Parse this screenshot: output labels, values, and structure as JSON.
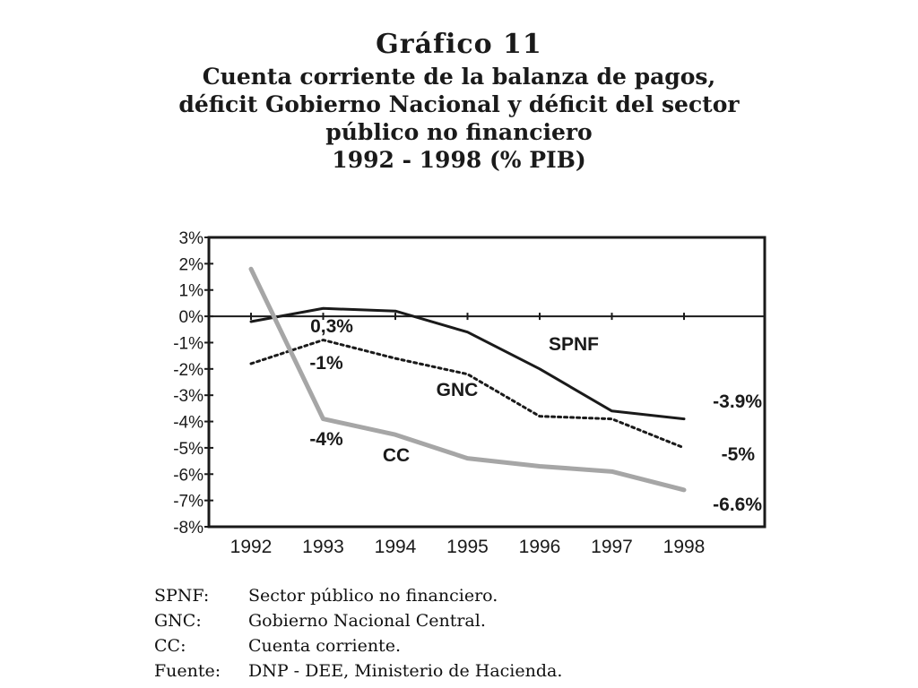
{
  "header": {
    "title": "Gráfico 11",
    "subtitle_lines": [
      "Cuenta corriente de la balanza de pagos,",
      "déficit Gobierno Nacional y déficit del sector",
      "público no financiero",
      "1992 - 1998 (% PIB)"
    ]
  },
  "chart_data": {
    "type": "line",
    "title": "Gráfico 11",
    "x": [
      "1992",
      "1993",
      "1994",
      "1995",
      "1996",
      "1997",
      "1998"
    ],
    "ylim": [
      -8,
      3
    ],
    "y_ticks": [
      "3%",
      "2%",
      "1%",
      "0%",
      "-1%",
      "-2%",
      "-3%",
      "-4%",
      "-5%",
      "-6%",
      "-7%",
      "-8%"
    ],
    "grid": false,
    "series": [
      {
        "name": "SPNF",
        "values": [
          -0.2,
          0.3,
          0.2,
          -0.6,
          -2.0,
          -3.6,
          -3.9
        ],
        "color": "#1a1a1a",
        "style": "solid"
      },
      {
        "name": "GNC",
        "values": [
          -1.8,
          -0.9,
          -1.6,
          -2.2,
          -3.8,
          -3.9,
          -5.0
        ],
        "color": "#1a1a1a",
        "style": "dotted"
      },
      {
        "name": "CC",
        "values": [
          1.8,
          -3.9,
          -4.5,
          -5.4,
          -5.7,
          -5.9,
          -6.6
        ],
        "color": "#a6a6a6",
        "style": "solid"
      }
    ],
    "annotations": [
      "0,3%",
      "-1%",
      "-4%",
      "-3.9%",
      "-5%",
      "-6.6%"
    ]
  },
  "notes": [
    {
      "key": "SPNF:",
      "text": "Sector público no financiero."
    },
    {
      "key": "GNC:",
      "text": "Gobierno Nacional Central."
    },
    {
      "key": "CC:",
      "text": "Cuenta corriente."
    },
    {
      "key": "Fuente:",
      "text": "DNP - DEE, Ministerio de Hacienda."
    }
  ]
}
